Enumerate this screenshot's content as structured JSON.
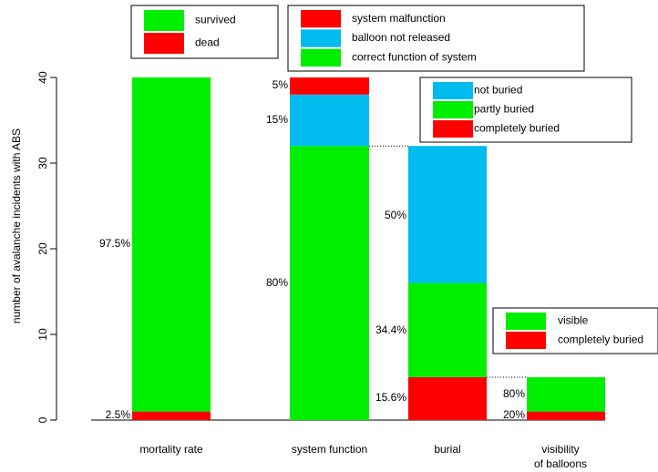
{
  "colors": {
    "green": "#00ee00",
    "red": "#ff0000",
    "blue": "#00bbee"
  },
  "chart_data": {
    "type": "bar",
    "stacked": true,
    "ylabel": "number of avalanche incidents with ABS",
    "ylim": [
      0,
      40
    ],
    "yticks": [
      0,
      10,
      20,
      30,
      40
    ],
    "grid": false,
    "bars": [
      {
        "category": "mortality rate",
        "segments": [
          {
            "name": "dead",
            "value": 1,
            "color": "red",
            "label": "2.5%"
          },
          {
            "name": "survived",
            "value": 39,
            "color": "green",
            "label": "97.5%"
          }
        ],
        "legend": [
          {
            "name": "survived",
            "color": "green"
          },
          {
            "name": "dead",
            "color": "red"
          }
        ]
      },
      {
        "category": "system function",
        "segments": [
          {
            "name": "correct function of system",
            "value": 32,
            "color": "green",
            "label": "80%"
          },
          {
            "name": "balloon not released",
            "value": 6,
            "color": "blue",
            "label": "15%"
          },
          {
            "name": "system malfunction",
            "value": 2,
            "color": "red",
            "label": "5%"
          }
        ],
        "legend": [
          {
            "name": "system malfunction",
            "color": "red"
          },
          {
            "name": "balloon not released",
            "color": "blue"
          },
          {
            "name": "correct function of system",
            "color": "green"
          }
        ]
      },
      {
        "category": "burial",
        "segments": [
          {
            "name": "completely buried",
            "value": 5,
            "color": "red",
            "label": "15.6%"
          },
          {
            "name": "partly buried",
            "value": 11,
            "color": "green",
            "label": "34.4%"
          },
          {
            "name": "not buried",
            "value": 16,
            "color": "blue",
            "label": "50%"
          }
        ],
        "legend": [
          {
            "name": "not buried",
            "color": "blue"
          },
          {
            "name": "partly buried",
            "color": "green"
          },
          {
            "name": "completely buried",
            "color": "red"
          }
        ]
      },
      {
        "category_lines": [
          "visibility",
          "of balloons"
        ],
        "segments": [
          {
            "name": "completely buried",
            "value": 1,
            "color": "red",
            "label": "20%"
          },
          {
            "name": "visible",
            "value": 4,
            "color": "green",
            "label": "80%"
          }
        ],
        "legend": [
          {
            "name": "visible",
            "color": "green"
          },
          {
            "name": "completely buried",
            "color": "red"
          }
        ]
      }
    ]
  }
}
